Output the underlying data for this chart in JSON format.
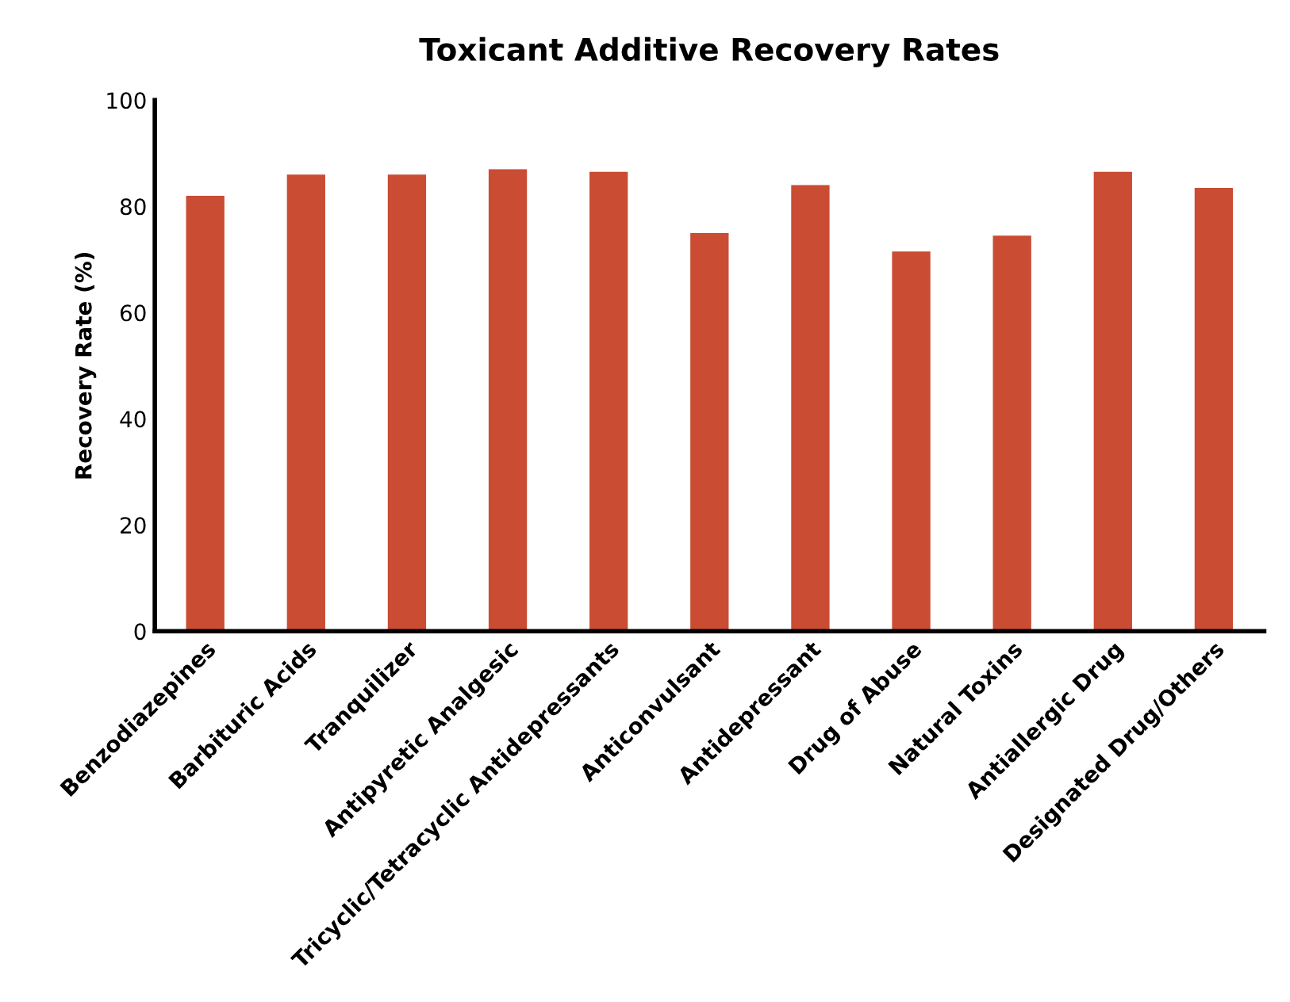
{
  "chart_data": {
    "type": "bar",
    "title": "Toxicant Additive Recovery Rates",
    "ylabel": "Recovery Rate (%)",
    "categories": [
      "Benzodiazepines",
      "Barbituric Acids",
      "Tranquilizer",
      "Antipyretic Analgesic",
      "Tricyclic/Tetracyclic Antidepressants",
      "Anticonvulsant",
      "Antidepressant",
      "Drug of Abuse",
      "Natural Toxins",
      "Antiallergic Drug",
      "Designated Drug/Others"
    ],
    "values": [
      82,
      86,
      86,
      87,
      86.5,
      75,
      84,
      71.5,
      74.5,
      86.5,
      83.5
    ],
    "color": "#c94c33",
    "ylim": [
      0,
      100
    ],
    "yticks": [
      0,
      20,
      40,
      60,
      80,
      100
    ],
    "grid": false,
    "legend": false
  }
}
